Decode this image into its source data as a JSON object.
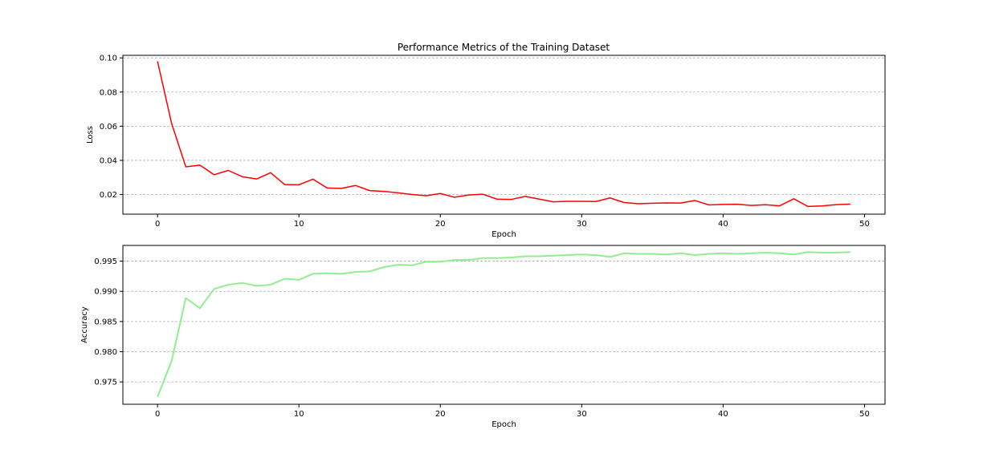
{
  "title": "Performance Metrics of the Training Dataset",
  "chart_data": [
    {
      "type": "line",
      "title": "Performance Metrics of the Training Dataset",
      "xlabel": "Epoch",
      "ylabel": "Loss",
      "xlim": [
        -2.45,
        51.45
      ],
      "ylim": [
        0.0085,
        0.1015
      ],
      "xticks": [
        0,
        10,
        20,
        30,
        40,
        50
      ],
      "yticks": [
        0.02,
        0.04,
        0.06,
        0.08,
        0.1
      ],
      "ytick_labels": [
        "0.02",
        "0.04",
        "0.06",
        "0.08",
        "0.10"
      ],
      "grid": "y-dashed",
      "x": [
        0,
        1,
        2,
        3,
        4,
        5,
        6,
        7,
        8,
        9,
        10,
        11,
        12,
        13,
        14,
        15,
        16,
        17,
        18,
        19,
        20,
        21,
        22,
        23,
        24,
        25,
        26,
        27,
        28,
        29,
        30,
        31,
        32,
        33,
        34,
        35,
        36,
        37,
        38,
        39,
        40,
        41,
        42,
        43,
        44,
        45,
        46,
        47,
        48,
        49
      ],
      "series": [
        {
          "color": "#ff0000",
          "values": [
            0.098,
            0.0615,
            0.0362,
            0.0372,
            0.0316,
            0.0341,
            0.0304,
            0.0291,
            0.0328,
            0.0258,
            0.0257,
            0.029,
            0.0238,
            0.0236,
            0.0253,
            0.0223,
            0.0218,
            0.021,
            0.02,
            0.0193,
            0.0206,
            0.0184,
            0.0197,
            0.0202,
            0.0173,
            0.0171,
            0.0189,
            0.0173,
            0.0157,
            0.016,
            0.016,
            0.0159,
            0.018,
            0.0153,
            0.0146,
            0.0149,
            0.0151,
            0.015,
            0.0165,
            0.0139,
            0.0142,
            0.0143,
            0.0136,
            0.014,
            0.0134,
            0.0175,
            0.013,
            0.0133,
            0.0141,
            0.0144
          ]
        }
      ]
    },
    {
      "type": "line",
      "title": "",
      "xlabel": "Epoch",
      "ylabel": "Accuracy",
      "xlim": [
        -2.45,
        51.45
      ],
      "ylim": [
        0.9713,
        0.9976
      ],
      "xticks": [
        0,
        10,
        20,
        30,
        40,
        50
      ],
      "yticks": [
        0.975,
        0.98,
        0.985,
        0.99,
        0.995
      ],
      "ytick_labels": [
        "0.975",
        "0.980",
        "0.985",
        "0.990",
        "0.995"
      ],
      "grid": "y-dashed",
      "x": [
        0,
        1,
        2,
        3,
        4,
        5,
        6,
        7,
        8,
        9,
        10,
        11,
        12,
        13,
        14,
        15,
        16,
        17,
        18,
        19,
        20,
        21,
        22,
        23,
        24,
        25,
        26,
        27,
        28,
        29,
        30,
        31,
        32,
        33,
        34,
        35,
        36,
        37,
        38,
        39,
        40,
        41,
        42,
        43,
        44,
        45,
        46,
        47,
        48,
        49
      ],
      "series": [
        {
          "color": "#90ee90",
          "values": [
            0.9725,
            0.9785,
            0.9889,
            0.9872,
            0.9904,
            0.9911,
            0.9914,
            0.9909,
            0.9911,
            0.9921,
            0.9919,
            0.9929,
            0.993,
            0.9929,
            0.9932,
            0.9933,
            0.994,
            0.9944,
            0.9943,
            0.9949,
            0.9949,
            0.9952,
            0.9952,
            0.9955,
            0.9955,
            0.9956,
            0.9958,
            0.9958,
            0.9959,
            0.996,
            0.9961,
            0.996,
            0.9957,
            0.9963,
            0.9962,
            0.9962,
            0.9961,
            0.9963,
            0.996,
            0.9962,
            0.9963,
            0.9962,
            0.9963,
            0.9964,
            0.9963,
            0.9961,
            0.9965,
            0.9964,
            0.9964,
            0.9965
          ]
        }
      ]
    }
  ]
}
